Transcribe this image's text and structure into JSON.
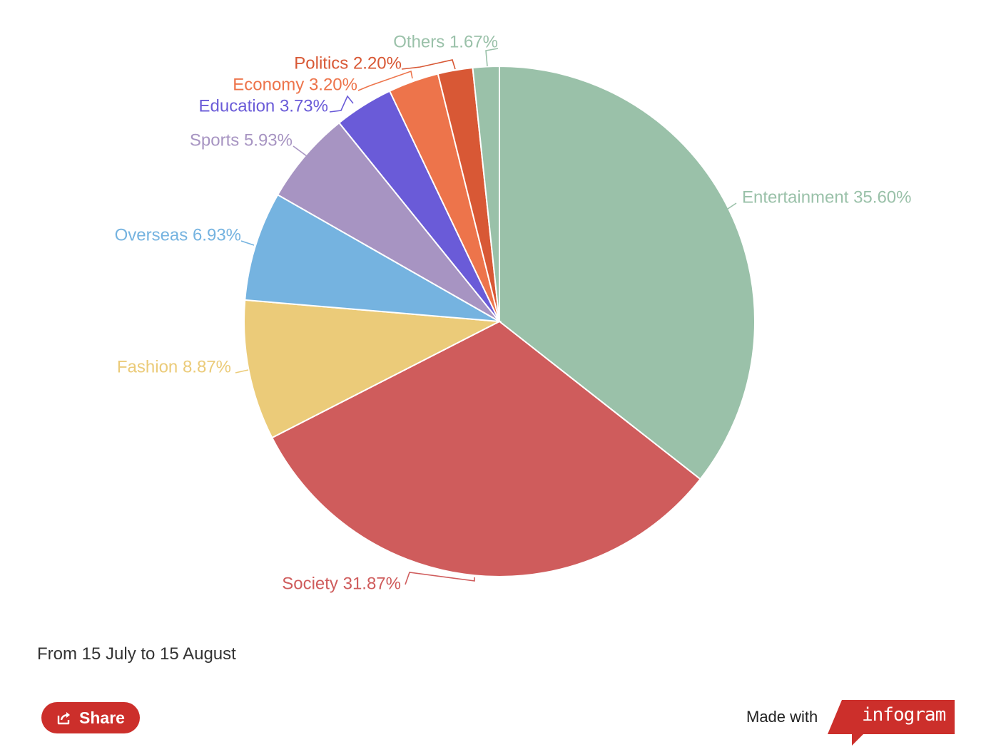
{
  "chart_data": {
    "type": "pie",
    "slices": [
      {
        "label": "Entertainment",
        "percent_text": "35.60%",
        "value": 35.6,
        "color": "#9ac1a9"
      },
      {
        "label": "Society",
        "percent_text": "31.87%",
        "value": 31.87,
        "color": "#cf5c5c"
      },
      {
        "label": "Fashion",
        "percent_text": "8.87%",
        "value": 8.87,
        "color": "#ebcb79"
      },
      {
        "label": "Overseas",
        "percent_text": "6.93%",
        "value": 6.93,
        "color": "#75b3e0"
      },
      {
        "label": "Sports",
        "percent_text": "5.93%",
        "value": 5.93,
        "color": "#a794c2"
      },
      {
        "label": "Education",
        "percent_text": "3.73%",
        "value": 3.73,
        "color": "#6a5bd8"
      },
      {
        "label": "Economy",
        "percent_text": "3.20%",
        "value": 3.2,
        "color": "#ed744b"
      },
      {
        "label": "Politics",
        "percent_text": "2.20%",
        "value": 2.2,
        "color": "#d85835"
      },
      {
        "label": "Others",
        "percent_text": "1.67%",
        "value": 1.67,
        "color": "#9ac1a9"
      }
    ],
    "start": "12 o'clock, clockwise"
  },
  "caption": "From 15 July to 15 August",
  "share": {
    "label": "Share",
    "icon": "share-icon",
    "color": "#cc2f2b"
  },
  "footer": {
    "made_with": "Made with",
    "brand": "infogram",
    "brand_color": "#cc2f2b"
  }
}
